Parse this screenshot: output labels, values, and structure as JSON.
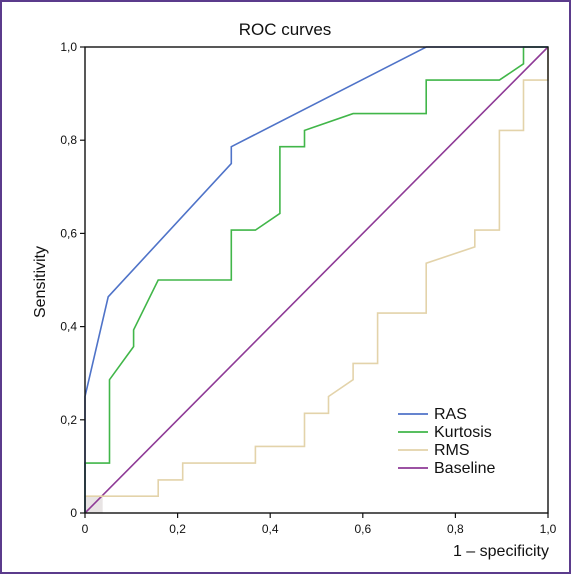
{
  "chart_data": {
    "type": "line",
    "title": "ROC curves",
    "xlabel": "1 – specificity",
    "ylabel": "Sensitivity",
    "xlim": [
      0,
      1
    ],
    "ylim": [
      0,
      1
    ],
    "x_ticks": [
      "0",
      "0,2",
      "0,4",
      "0,6",
      "0,8",
      "1,0"
    ],
    "y_ticks": [
      "0",
      "0,2",
      "0,4",
      "0,6",
      "0,8",
      "1,0"
    ],
    "grid": false,
    "legend_position": "bottom-right",
    "series": [
      {
        "name": "RAS",
        "color": "#4f73c8",
        "points": [
          [
            0,
            0
          ],
          [
            0,
            0.25
          ],
          [
            0.05,
            0.464
          ],
          [
            0.316,
            0.75
          ],
          [
            0.316,
            0.786
          ],
          [
            0.737,
            1.0
          ],
          [
            1.0,
            1.0
          ]
        ]
      },
      {
        "name": "Kurtosis",
        "color": "#41b649",
        "points": [
          [
            0,
            0
          ],
          [
            0,
            0.107
          ],
          [
            0.053,
            0.107
          ],
          [
            0.053,
            0.286
          ],
          [
            0.105,
            0.357
          ],
          [
            0.105,
            0.393
          ],
          [
            0.158,
            0.5
          ],
          [
            0.316,
            0.5
          ],
          [
            0.316,
            0.607
          ],
          [
            0.368,
            0.607
          ],
          [
            0.421,
            0.643
          ],
          [
            0.421,
            0.786
          ],
          [
            0.474,
            0.786
          ],
          [
            0.474,
            0.821
          ],
          [
            0.579,
            0.857
          ],
          [
            0.737,
            0.857
          ],
          [
            0.737,
            0.929
          ],
          [
            0.895,
            0.929
          ],
          [
            0.947,
            0.964
          ],
          [
            0.947,
            1.0
          ],
          [
            1.0,
            1.0
          ]
        ]
      },
      {
        "name": "RMS",
        "color": "#e3d3aa",
        "points": [
          [
            0,
            0
          ],
          [
            0,
            0.036
          ],
          [
            0.158,
            0.036
          ],
          [
            0.158,
            0.071
          ],
          [
            0.211,
            0.071
          ],
          [
            0.211,
            0.107
          ],
          [
            0.368,
            0.107
          ],
          [
            0.368,
            0.143
          ],
          [
            0.474,
            0.143
          ],
          [
            0.474,
            0.214
          ],
          [
            0.526,
            0.214
          ],
          [
            0.526,
            0.25
          ],
          [
            0.579,
            0.286
          ],
          [
            0.579,
            0.321
          ],
          [
            0.632,
            0.321
          ],
          [
            0.632,
            0.429
          ],
          [
            0.737,
            0.429
          ],
          [
            0.737,
            0.536
          ],
          [
            0.842,
            0.571
          ],
          [
            0.842,
            0.607
          ],
          [
            0.895,
            0.607
          ],
          [
            0.895,
            0.821
          ],
          [
            0.947,
            0.821
          ],
          [
            0.947,
            0.929
          ],
          [
            1.0,
            0.929
          ],
          [
            1.0,
            1.0
          ]
        ]
      },
      {
        "name": "Baseline",
        "color": "#8e3a96",
        "points": [
          [
            0,
            0
          ],
          [
            1,
            1
          ]
        ]
      }
    ]
  }
}
